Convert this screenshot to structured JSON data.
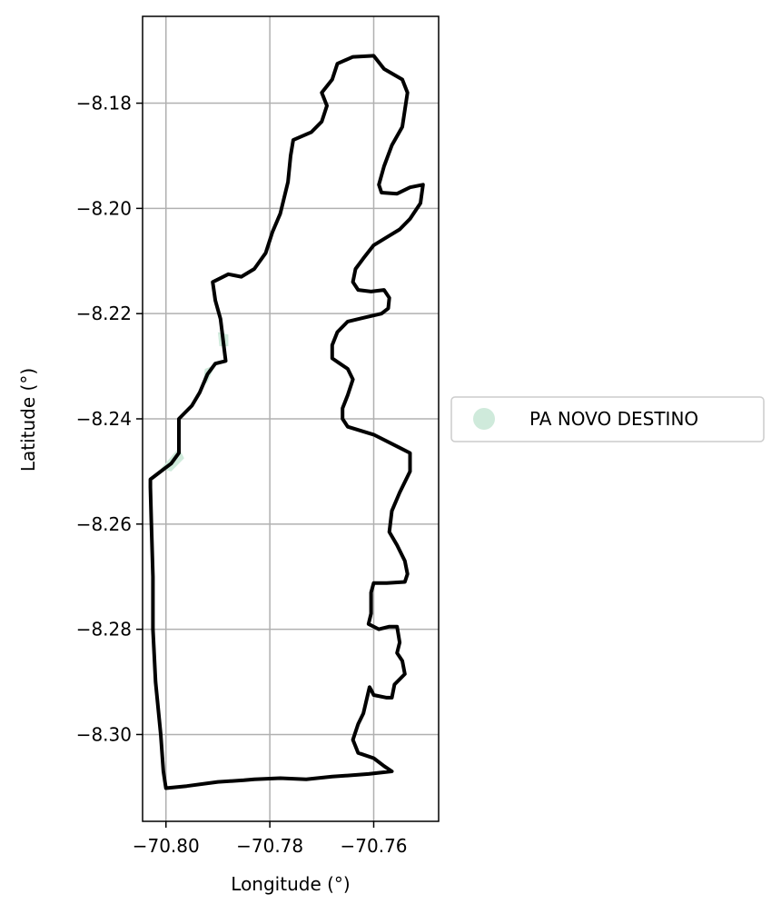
{
  "chart_data": {
    "type": "map",
    "xlabel": "Longitude (°)",
    "ylabel": "Latitude (°)",
    "xlim": [
      -70.8045,
      -70.7475
    ],
    "ylim": [
      -8.3165,
      -8.1635
    ],
    "grid": true,
    "x_ticks": [
      {
        "value": -70.8,
        "label": "−70.80"
      },
      {
        "value": -70.78,
        "label": "−70.78"
      },
      {
        "value": -70.76,
        "label": "−70.76"
      }
    ],
    "y_ticks": [
      {
        "value": -8.18,
        "label": "−8.18"
      },
      {
        "value": -8.2,
        "label": "−8.20"
      },
      {
        "value": -8.22,
        "label": "−8.22"
      },
      {
        "value": -8.24,
        "label": "−8.24"
      },
      {
        "value": -8.26,
        "label": "−8.26"
      },
      {
        "value": -8.28,
        "label": "−8.28"
      },
      {
        "value": -8.3,
        "label": "−8.30"
      }
    ],
    "legend": {
      "placement": "center-right-outside",
      "entries": [
        {
          "label": "PA NOVO DESTINO",
          "color": "#cfeadb",
          "marker": "circle"
        }
      ]
    },
    "fill_color": "#cfeadb",
    "outline_color": "#000000",
    "boundary": [
      [
        -70.767,
        -8.1725
      ],
      [
        -70.764,
        -8.1712
      ],
      [
        -70.76,
        -8.171
      ],
      [
        -70.758,
        -8.1735
      ],
      [
        -70.7545,
        -8.1755
      ],
      [
        -70.7535,
        -8.178
      ],
      [
        -70.7545,
        -8.1845
      ],
      [
        -70.7565,
        -8.188
      ],
      [
        -70.758,
        -8.192
      ],
      [
        -70.759,
        -8.1955
      ],
      [
        -70.7585,
        -8.197
      ],
      [
        -70.7555,
        -8.1972
      ],
      [
        -70.753,
        -8.196
      ],
      [
        -70.7505,
        -8.1955
      ],
      [
        -70.751,
        -8.199
      ],
      [
        -70.753,
        -8.202
      ],
      [
        -70.755,
        -8.204
      ],
      [
        -70.7575,
        -8.2055
      ],
      [
        -70.76,
        -8.207
      ],
      [
        -70.762,
        -8.2095
      ],
      [
        -70.7635,
        -8.2115
      ],
      [
        -70.764,
        -8.214
      ],
      [
        -70.763,
        -8.2155
      ],
      [
        -70.7605,
        -8.2158
      ],
      [
        -70.758,
        -8.2155
      ],
      [
        -70.757,
        -8.217
      ],
      [
        -70.7572,
        -8.219
      ],
      [
        -70.7585,
        -8.22
      ],
      [
        -70.762,
        -8.2208
      ],
      [
        -70.765,
        -8.2215
      ],
      [
        -70.767,
        -8.2235
      ],
      [
        -70.768,
        -8.226
      ],
      [
        -70.768,
        -8.2285
      ],
      [
        -70.7665,
        -8.2295
      ],
      [
        -70.765,
        -8.2305
      ],
      [
        -70.764,
        -8.2325
      ],
      [
        -70.765,
        -8.2355
      ],
      [
        -70.766,
        -8.238
      ],
      [
        -70.766,
        -8.24
      ],
      [
        -70.765,
        -8.2415
      ],
      [
        -70.76,
        -8.243
      ],
      [
        -70.755,
        -8.2455
      ],
      [
        -70.753,
        -8.2465
      ],
      [
        -70.753,
        -8.25
      ],
      [
        -70.755,
        -8.254
      ],
      [
        -70.7565,
        -8.2575
      ],
      [
        -70.757,
        -8.2615
      ],
      [
        -70.7555,
        -8.264
      ],
      [
        -70.754,
        -8.267
      ],
      [
        -70.7535,
        -8.2695
      ],
      [
        -70.754,
        -8.271
      ],
      [
        -70.7575,
        -8.2712
      ],
      [
        -70.76,
        -8.2712
      ],
      [
        -70.7605,
        -8.273
      ],
      [
        -70.7605,
        -8.277
      ],
      [
        -70.761,
        -8.279
      ],
      [
        -70.759,
        -8.28
      ],
      [
        -70.757,
        -8.2795
      ],
      [
        -70.7555,
        -8.2795
      ],
      [
        -70.755,
        -8.2825
      ],
      [
        -70.7555,
        -8.2845
      ],
      [
        -70.7545,
        -8.286
      ],
      [
        -70.754,
        -8.2885
      ],
      [
        -70.756,
        -8.2905
      ],
      [
        -70.7565,
        -8.293
      ],
      [
        -70.7575,
        -8.293
      ],
      [
        -70.76,
        -8.2925
      ],
      [
        -70.7605,
        -8.2915
      ],
      [
        -70.7608,
        -8.291
      ],
      [
        -70.762,
        -8.296
      ],
      [
        -70.763,
        -8.298
      ],
      [
        -70.764,
        -8.301
      ],
      [
        -70.763,
        -8.3035
      ],
      [
        -70.76,
        -8.3045
      ],
      [
        -70.758,
        -8.306
      ],
      [
        -70.7565,
        -8.307
      ],
      [
        -70.761,
        -8.3075
      ],
      [
        -70.768,
        -8.308
      ],
      [
        -70.773,
        -8.3085
      ],
      [
        -70.778,
        -8.3083
      ],
      [
        -70.783,
        -8.3085
      ],
      [
        -70.785,
        -8.3087
      ],
      [
        -70.79,
        -8.309
      ],
      [
        -70.796,
        -8.3098
      ],
      [
        -70.8,
        -8.3102
      ],
      [
        -70.8005,
        -8.307
      ],
      [
        -70.801,
        -8.3
      ],
      [
        -70.802,
        -8.29
      ],
      [
        -70.8025,
        -8.28
      ],
      [
        -70.8025,
        -8.27
      ],
      [
        -70.8028,
        -8.26
      ],
      [
        -70.803,
        -8.253
      ],
      [
        -70.803,
        -8.2515
      ],
      [
        -70.801,
        -8.25
      ],
      [
        -70.799,
        -8.2485
      ],
      [
        -70.7975,
        -8.2465
      ],
      [
        -70.7975,
        -8.24
      ],
      [
        -70.795,
        -8.2375
      ],
      [
        -70.7935,
        -8.235
      ],
      [
        -70.792,
        -8.2315
      ],
      [
        -70.7905,
        -8.2295
      ],
      [
        -70.7885,
        -8.229
      ],
      [
        -70.7895,
        -8.221
      ],
      [
        -70.7905,
        -8.2175
      ],
      [
        -70.791,
        -8.214
      ],
      [
        -70.788,
        -8.2125
      ],
      [
        -70.7855,
        -8.213
      ],
      [
        -70.783,
        -8.2115
      ],
      [
        -70.7808,
        -8.2085
      ],
      [
        -70.7795,
        -8.2045
      ],
      [
        -70.778,
        -8.201
      ],
      [
        -70.7765,
        -8.195
      ],
      [
        -70.776,
        -8.19
      ],
      [
        -70.7755,
        -8.187
      ],
      [
        -70.772,
        -8.1855
      ],
      [
        -70.77,
        -8.1835
      ],
      [
        -70.769,
        -8.1805
      ],
      [
        -70.77,
        -8.178
      ],
      [
        -70.768,
        -8.1755
      ],
      [
        -70.767,
        -8.1725
      ]
    ],
    "fill_slivers": [
      [
        [
          -70.79,
          -8.2235
        ],
        [
          -70.788,
          -8.224
        ],
        [
          -70.788,
          -8.2262
        ],
        [
          -70.7897,
          -8.2262
        ]
      ],
      [
        [
          -70.7925,
          -8.2305
        ],
        [
          -70.7905,
          -8.2298
        ],
        [
          -70.792,
          -8.233
        ],
        [
          -70.793,
          -8.234
        ]
      ],
      [
        [
          -70.7975,
          -8.2455
        ],
        [
          -70.7965,
          -8.2475
        ],
        [
          -70.799,
          -8.25
        ],
        [
          -70.801,
          -8.2495
        ]
      ]
    ]
  }
}
